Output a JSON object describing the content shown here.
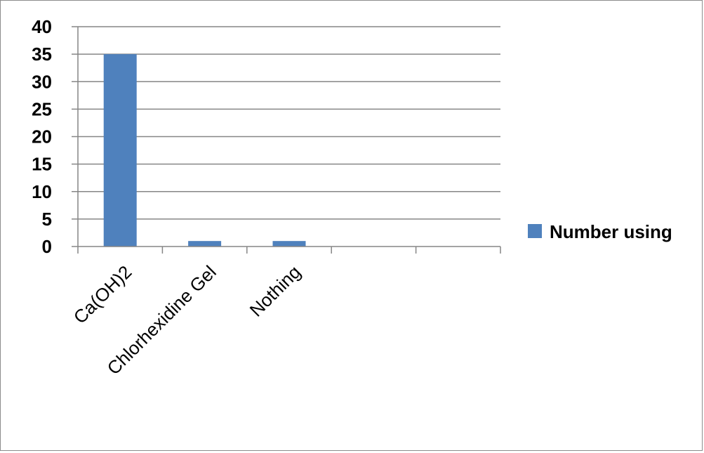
{
  "chart_data": {
    "type": "bar",
    "categories": [
      "Ca(OH)2",
      "Chlorhexidine Gel",
      "Nothing",
      "",
      ""
    ],
    "series": [
      {
        "name": "Number using",
        "values": [
          35,
          1,
          1,
          0,
          0
        ]
      }
    ],
    "ylim": [
      0,
      40
    ],
    "yticks": [
      0,
      5,
      10,
      15,
      20,
      25,
      30,
      35,
      40
    ],
    "grid": true,
    "legend_position": "right",
    "colors": {
      "bar": "#4f81bd",
      "grid": "#868686",
      "axis": "#868686"
    }
  }
}
